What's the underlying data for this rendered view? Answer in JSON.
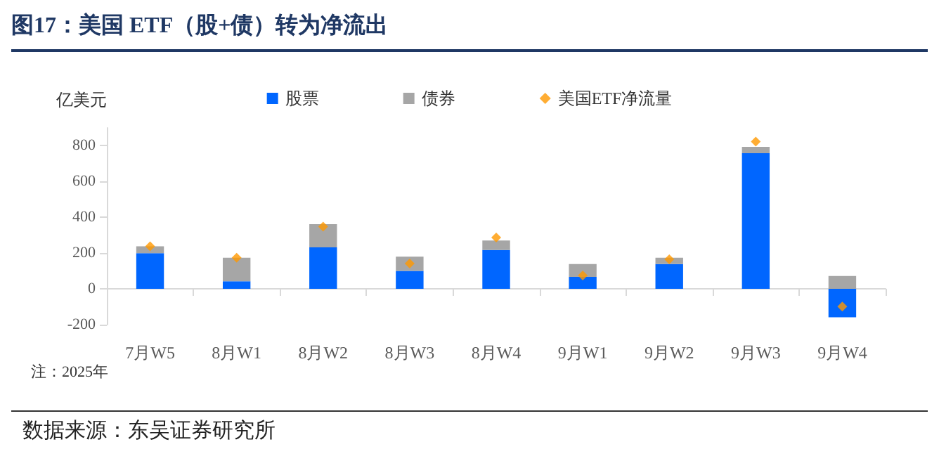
{
  "chart_data": {
    "type": "bar",
    "title": "图17：美国 ETF（股+债）转为净流出",
    "ylabel": "亿美元",
    "stacked": true,
    "legend": "top",
    "categories": [
      "7月W5",
      "8月W1",
      "8月W2",
      "8月W3",
      "8月W4",
      "9月W1",
      "9月W2",
      "9月W3",
      "9月W4"
    ],
    "series": [
      {
        "name": "股票",
        "color": "#0066ff",
        "values": [
          200,
          43,
          232,
          101,
          217,
          67,
          139,
          759,
          -159
        ]
      },
      {
        "name": "债券",
        "color": "#a6a6a6",
        "values": [
          38,
          131,
          130,
          79,
          53,
          72,
          35,
          35,
          72
        ]
      },
      {
        "name": "美国ETF净流量",
        "type": "scatter",
        "marker": "diamond",
        "color": "#ff9900",
        "x": [
          "7月W5",
          "8月W1",
          "8月W2",
          "8月W3",
          "8月W4",
          "9月W1",
          "9月W2",
          "9月W3",
          "9月W4"
        ],
        "values": [
          238,
          174,
          348,
          142,
          287,
          75,
          165,
          823,
          -99
        ]
      }
    ],
    "ylim": [
      -200,
      900
    ],
    "yticks": [
      -200,
      0,
      200,
      400,
      600,
      800
    ],
    "annotations": [
      "注：2025年",
      "数据来源：东吴证券研究所"
    ]
  }
}
